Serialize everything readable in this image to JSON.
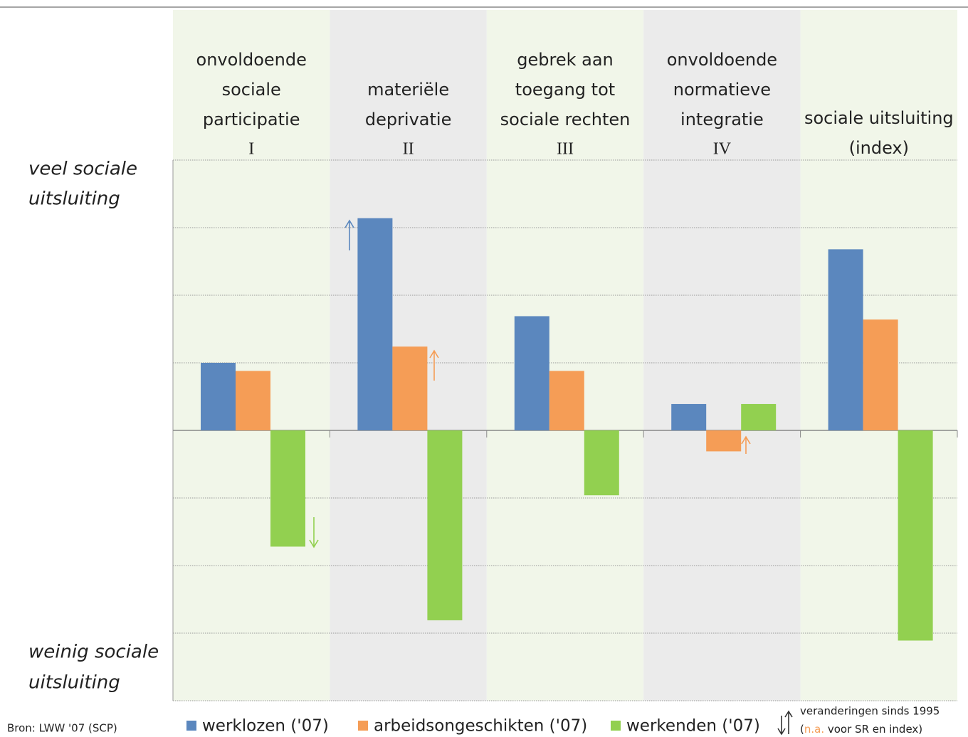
{
  "chart_data": {
    "type": "bar",
    "categories": [
      {
        "lines": [
          "onvoldoende",
          "sociale",
          "participatie"
        ],
        "numeral": "I"
      },
      {
        "lines": [
          "materiële",
          "deprivatie"
        ],
        "numeral": "II"
      },
      {
        "lines": [
          "gebrek aan",
          "toegang tot",
          "sociale rechten"
        ],
        "numeral": "III"
      },
      {
        "lines": [
          "onvoldoende",
          "normatieve",
          "integratie"
        ],
        "numeral": "IV"
      },
      {
        "lines": [
          "sociale uitsluiting",
          "(index)"
        ]
      }
    ],
    "series": [
      {
        "name": "werklozen ('07)",
        "color": "#5b87be",
        "values": [
          1.0,
          3.14,
          1.69,
          0.39,
          2.68
        ]
      },
      {
        "name": "arbeidsongeschikten ('07)",
        "color": "#f59d56",
        "values": [
          0.88,
          1.24,
          0.88,
          -0.31,
          1.64
        ]
      },
      {
        "name": "werkenden ('07)",
        "color": "#92d050",
        "values": [
          -1.72,
          -2.81,
          -0.96,
          0.39,
          -3.11
        ]
      }
    ],
    "ylim": [
      -4,
      4
    ],
    "yticks": [
      -4,
      -3,
      -2,
      -1,
      0,
      1,
      2,
      3,
      4
    ],
    "grid": true,
    "top_label": [
      "veel sociale",
      "uitsluiting"
    ],
    "bottom_label": [
      "weinig sociale",
      "uitsluiting"
    ],
    "source": "Bron: LWW '07 (SCP)",
    "note": {
      "line1": "veranderingen sinds 1995",
      "open": "(",
      "na": "n.a.",
      "rest": " voor SR en index)"
    }
  }
}
